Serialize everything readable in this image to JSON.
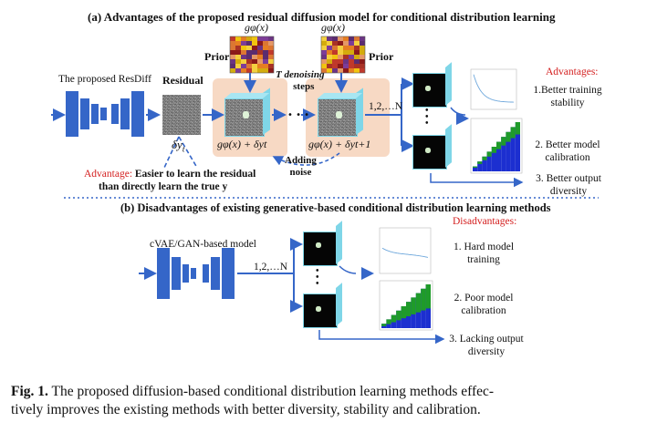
{
  "section_a": {
    "title": "(a) Advantages of the proposed residual diffusion model for conditional distribution learning",
    "model_label": "The proposed ResDiff",
    "residual_label": "Residual",
    "delta_label": "δy",
    "delta_sub": "t",
    "prior_label_1": "Prior",
    "prior_label_2": "Prior",
    "g_prior_1": "gφ(x)",
    "g_prior_2": "gφ(x)",
    "denoise_label_1": "T denoising",
    "denoise_label_2": "steps",
    "adding_noise_1": "Adding",
    "adding_noise_2": "noise",
    "formula_1": "gφ(x) + δyt",
    "formula_2": "gφ(x) + δyt+1",
    "dots": "• • •",
    "samples_label": "1,2,…N",
    "advantage_prefix": "Advantage:",
    "advantage_text_1": "Easier to learn the residual",
    "advantage_text_2": "than directly learn  the true y",
    "advantages_header": "Advantages:",
    "adv_items": [
      "1.Better training",
      "stability",
      "2. Better model",
      "calibration",
      "3. Better output",
      "diversity"
    ]
  },
  "section_b": {
    "title": "(b)  Disadvantages of existing generative-based conditional distribution learning methods",
    "model_label": "cVAE/GAN-based model",
    "samples_label": "1,2,…N",
    "disadvantages_header": "Disadvantages:",
    "dis_items": [
      "1. Hard model",
      "training",
      "2. Poor model",
      "calibration",
      "3. Lacking output",
      "diversity"
    ]
  },
  "caption": {
    "prefix": "Fig. 1.",
    "line1": "The proposed diffusion-based conditional distribution learning methods effec-",
    "line2": "tively improves the existing methods with better diversity, stability and calibration."
  },
  "colors": {
    "network_blue": "#3566c8",
    "accent_red": "#d42020",
    "peach": "#f7d9c4",
    "cube_side": "#7fd6e8",
    "calib_green": "#1f9b2a",
    "calib_blue": "#1c2fd0"
  }
}
